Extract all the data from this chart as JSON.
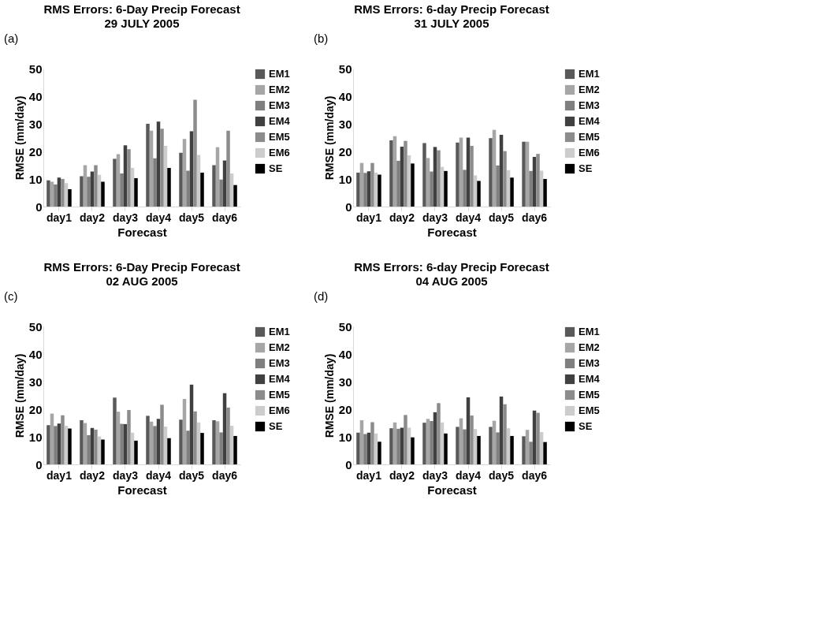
{
  "chart_data": [
    {
      "type": "bar",
      "title": "RMS Errors: 6-Day Precip Forecast",
      "subtitle": "29 JULY 2005",
      "xlabel": "Forecast",
      "ylabel": "RMSE (mm/day)",
      "annotations": [
        "(a)"
      ],
      "categories": [
        "day1",
        "day2",
        "day3",
        "day4",
        "day5",
        "day6"
      ],
      "ylim": [
        0,
        50
      ],
      "yticks": [
        0,
        10,
        20,
        30,
        40,
        50
      ],
      "grid": false,
      "legend": "right",
      "series": [
        {
          "name": "EM1",
          "color": "#595959",
          "values": [
            9.5,
            11,
            17.3,
            30,
            19.5,
            15
          ]
        },
        {
          "name": "EM2",
          "color": "#a6a6a6",
          "values": [
            9,
            15,
            19,
            27.5,
            24.5,
            21.5
          ]
        },
        {
          "name": "EM3",
          "color": "#7f7f7f",
          "values": [
            8,
            10.8,
            12,
            17.5,
            13,
            9.8
          ]
        },
        {
          "name": "EM4",
          "color": "#404040",
          "values": [
            10.5,
            12.7,
            22.2,
            30.8,
            27.3,
            16.7
          ]
        },
        {
          "name": "EM5",
          "color": "#8c8c8c",
          "values": [
            10,
            15,
            20.8,
            28.2,
            38.7,
            27.5
          ]
        },
        {
          "name": "EM6",
          "color": "#cccccc",
          "values": [
            8.5,
            11.5,
            14,
            22,
            18.7,
            12
          ]
        },
        {
          "name": "SE",
          "color": "#000000",
          "values": [
            6.3,
            9,
            10.3,
            14,
            12.3,
            7.8
          ]
        }
      ]
    },
    {
      "type": "bar",
      "title": "RMS Errors: 6-day Precip Forecast",
      "subtitle": "31 JULY 2005",
      "xlabel": "Forecast",
      "ylabel": "RMSE (mm/day)",
      "annotations": [
        "(b)"
      ],
      "categories": [
        "day1",
        "day2",
        "day3",
        "day4",
        "day5",
        "day6"
      ],
      "ylim": [
        0,
        50
      ],
      "yticks": [
        0,
        10,
        20,
        30,
        40,
        50
      ],
      "grid": false,
      "legend": "right",
      "series": [
        {
          "name": "EM1",
          "color": "#595959",
          "values": [
            12.3,
            24,
            23,
            23.2,
            24.8,
            23.5
          ]
        },
        {
          "name": "EM2",
          "color": "#a6a6a6",
          "values": [
            15.8,
            25.5,
            17.6,
            25,
            27.8,
            23.5
          ]
        },
        {
          "name": "EM3",
          "color": "#7f7f7f",
          "values": [
            12.2,
            16.6,
            12.7,
            13.3,
            14.9,
            12.9
          ]
        },
        {
          "name": "EM4",
          "color": "#404040",
          "values": [
            12.8,
            21.7,
            21.6,
            25,
            26,
            18
          ]
        },
        {
          "name": "EM5",
          "color": "#8c8c8c",
          "values": [
            15.8,
            23.8,
            20.4,
            22,
            20.1,
            19.1
          ]
        },
        {
          "name": "EM6",
          "color": "#cccccc",
          "values": [
            12.3,
            18.6,
            14.4,
            11.3,
            13.2,
            13
          ]
        },
        {
          "name": "SE",
          "color": "#000000",
          "values": [
            11.6,
            15.6,
            12.9,
            9.3,
            10.5,
            10
          ]
        }
      ]
    },
    {
      "type": "bar",
      "title": "RMS Errors: 6-Day Precip Forecast",
      "subtitle": "02 AUG 2005",
      "xlabel": "Forecast",
      "ylabel": "RMSE (mm/day)",
      "annotations": [
        "(c)"
      ],
      "categories": [
        "day1",
        "day2",
        "day3",
        "day4",
        "day5",
        "day6"
      ],
      "ylim": [
        0,
        50
      ],
      "yticks": [
        0,
        10,
        20,
        30,
        40,
        50
      ],
      "grid": false,
      "legend": "right",
      "series": [
        {
          "name": "EM1",
          "color": "#595959",
          "values": [
            14.2,
            16,
            24.2,
            17.6,
            16.2,
            16
          ]
        },
        {
          "name": "EM2",
          "color": "#a6a6a6",
          "values": [
            18.4,
            15,
            19.1,
            15.5,
            23.7,
            15.6
          ]
        },
        {
          "name": "EM3",
          "color": "#7f7f7f",
          "values": [
            13.9,
            10.6,
            14.7,
            13.9,
            12.2,
            11.6
          ]
        },
        {
          "name": "EM4",
          "color": "#404040",
          "values": [
            14.8,
            13.2,
            14.6,
            16.5,
            28.9,
            25.8
          ]
        },
        {
          "name": "EM5",
          "color": "#8c8c8c",
          "values": [
            17.8,
            12.6,
            19.7,
            21.6,
            19.2,
            20.6
          ]
        },
        {
          "name": "EM6",
          "color": "#cccccc",
          "values": [
            14,
            10.1,
            11.5,
            13.7,
            15.2,
            14
          ]
        },
        {
          "name": "SE",
          "color": "#000000",
          "values": [
            13,
            9,
            8.6,
            9.5,
            11.4,
            10.3
          ]
        }
      ]
    },
    {
      "type": "bar",
      "title": "RMS Errors: 6-day Precip Forecast",
      "subtitle": "04 AUG 2005",
      "xlabel": "Forecast",
      "ylabel": "RMSE (mm/day)",
      "annotations": [
        "(d)"
      ],
      "categories": [
        "day1",
        "day2",
        "day3",
        "day4",
        "day5",
        "day6"
      ],
      "ylim": [
        0,
        50
      ],
      "yticks": [
        0,
        10,
        20,
        30,
        40,
        50
      ],
      "grid": false,
      "legend": "right",
      "series": [
        {
          "name": "EM1",
          "color": "#595959",
          "values": [
            11.5,
            13.1,
            15.1,
            13.6,
            13.6,
            10.2
          ]
        },
        {
          "name": "EM2",
          "color": "#a6a6a6",
          "values": [
            16,
            15.2,
            16.5,
            16.7,
            15.8,
            12.5
          ]
        },
        {
          "name": "EM3",
          "color": "#7f7f7f",
          "values": [
            11,
            12.9,
            15.7,
            12.7,
            11.6,
            8.2
          ]
        },
        {
          "name": "EM4",
          "color": "#404040",
          "values": [
            11.5,
            13.3,
            18.9,
            24.3,
            24.6,
            19.5
          ]
        },
        {
          "name": "EM5",
          "color": "#8c8c8c",
          "values": [
            15.3,
            17.9,
            22.2,
            17.7,
            21.8,
            18.7
          ]
        },
        {
          "name": "EM5",
          "color": "#cccccc",
          "values": [
            11.2,
            13.3,
            15.2,
            12.8,
            13.1,
            11.7
          ]
        },
        {
          "name": "SE",
          "color": "#000000",
          "values": [
            8.2,
            9.8,
            11.2,
            10.3,
            10.3,
            8.1
          ]
        }
      ]
    }
  ]
}
